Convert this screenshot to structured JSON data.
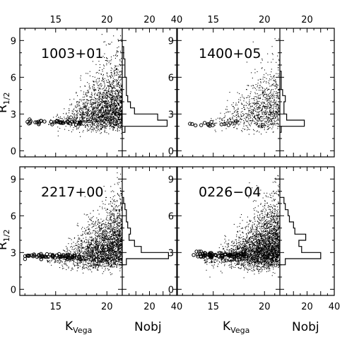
{
  "figure": {
    "y_label": "R",
    "y_label_sub": "1/2",
    "x_label_mag": "K",
    "x_label_mag_sub": "Vega",
    "x_label_hist": "Nobj"
  },
  "chart_data": [
    {
      "type": "scatter",
      "field": "1003+01",
      "scatter": {
        "xlim": [
          11.5,
          21.5
        ],
        "ylim": [
          -0.5,
          10
        ],
        "xticks_labeled": [
          15,
          20
        ],
        "yticks_labeled": [
          0,
          3,
          6,
          9
        ],
        "stars_x_range": [
          12,
          17.5
        ],
        "stars_y": 2.3,
        "n_stars": 34,
        "galaxy_x_range": [
          14,
          21.5
        ],
        "n_galaxies": 2300
      },
      "histogram": {
        "xlim": [
          0,
          40
        ],
        "xticks_labeled": [
          20,
          40
        ],
        "bins": [
          {
            "y": 1.75,
            "count": 2
          },
          {
            "y": 2.25,
            "count": 33
          },
          {
            "y": 2.75,
            "count": 26
          },
          {
            "y": 3.25,
            "count": 9
          },
          {
            "y": 3.75,
            "count": 6
          },
          {
            "y": 4.25,
            "count": 4
          },
          {
            "y": 4.75,
            "count": 3
          },
          {
            "y": 5.25,
            "count": 3
          },
          {
            "y": 5.75,
            "count": 3
          },
          {
            "y": 6.25,
            "count": 2
          },
          {
            "y": 6.75,
            "count": 2
          },
          {
            "y": 7.25,
            "count": 2
          },
          {
            "y": 7.75,
            "count": 1
          },
          {
            "y": 8.25,
            "count": 1
          }
        ]
      }
    },
    {
      "type": "scatter",
      "field": "1400+05",
      "scatter": {
        "xlim": [
          11.5,
          21.5
        ],
        "ylim": [
          -0.5,
          10
        ],
        "xticks_labeled": [
          15,
          20
        ],
        "yticks_labeled": [
          0,
          3,
          6,
          9
        ],
        "stars_x_range": [
          12.5,
          17.5
        ],
        "stars_y": 2.15,
        "n_stars": 16,
        "galaxy_x_range": [
          14.5,
          21.5
        ],
        "n_galaxies": 1000
      },
      "histogram": {
        "xlim": [
          0,
          40
        ],
        "xticks_labeled": [
          20
        ],
        "bins": [
          {
            "y": 1.75,
            "count": 1
          },
          {
            "y": 2.25,
            "count": 18
          },
          {
            "y": 2.75,
            "count": 5
          },
          {
            "y": 3.25,
            "count": 3
          },
          {
            "y": 3.75,
            "count": 3
          },
          {
            "y": 4.25,
            "count": 4
          },
          {
            "y": 4.75,
            "count": 2
          },
          {
            "y": 5.25,
            "count": 1
          },
          {
            "y": 5.75,
            "count": 1
          },
          {
            "y": 6.25,
            "count": 1
          }
        ]
      }
    },
    {
      "type": "scatter",
      "field": "2217+00",
      "scatter": {
        "xlim": [
          11.5,
          21.5
        ],
        "ylim": [
          -0.5,
          10
        ],
        "xticks_labeled": [
          15,
          20
        ],
        "yticks_labeled": [
          0,
          3,
          6,
          9
        ],
        "stars_x_range": [
          12,
          17.5
        ],
        "stars_y": 2.7,
        "n_stars": 55,
        "galaxy_x_range": [
          14,
          21.5
        ],
        "n_galaxies": 2600
      },
      "histogram": {
        "xlim": [
          0,
          40
        ],
        "xticks_labeled": [
          20,
          40
        ],
        "bins": [
          {
            "y": 2.25,
            "count": 3
          },
          {
            "y": 2.75,
            "count": 34
          },
          {
            "y": 3.25,
            "count": 14
          },
          {
            "y": 3.75,
            "count": 9
          },
          {
            "y": 4.25,
            "count": 5
          },
          {
            "y": 4.75,
            "count": 6
          },
          {
            "y": 5.25,
            "count": 4
          },
          {
            "y": 5.75,
            "count": 3
          },
          {
            "y": 6.25,
            "count": 3
          },
          {
            "y": 6.75,
            "count": 2
          },
          {
            "y": 7.25,
            "count": 1
          }
        ]
      }
    },
    {
      "type": "scatter",
      "field": "0226−04",
      "scatter": {
        "xlim": [
          11.5,
          21.5
        ],
        "ylim": [
          -0.5,
          10
        ],
        "xticks_labeled": [
          15,
          20
        ],
        "yticks_labeled": [
          0,
          3,
          6,
          9
        ],
        "stars_x_range": [
          13,
          18
        ],
        "stars_y": 2.8,
        "n_stars": 70,
        "galaxy_x_range": [
          14,
          21.5
        ],
        "n_galaxies": 3300
      },
      "histogram": {
        "xlim": [
          0,
          40
        ],
        "xticks_labeled": [
          20,
          40
        ],
        "bins": [
          {
            "y": 2.25,
            "count": 4
          },
          {
            "y": 2.75,
            "count": 30
          },
          {
            "y": 3.25,
            "count": 16
          },
          {
            "y": 3.75,
            "count": 14
          },
          {
            "y": 4.25,
            "count": 19
          },
          {
            "y": 4.75,
            "count": 11
          },
          {
            "y": 5.25,
            "count": 10
          },
          {
            "y": 5.75,
            "count": 7
          },
          {
            "y": 6.25,
            "count": 6
          },
          {
            "y": 6.75,
            "count": 4
          },
          {
            "y": 7.25,
            "count": 3
          }
        ]
      }
    }
  ]
}
